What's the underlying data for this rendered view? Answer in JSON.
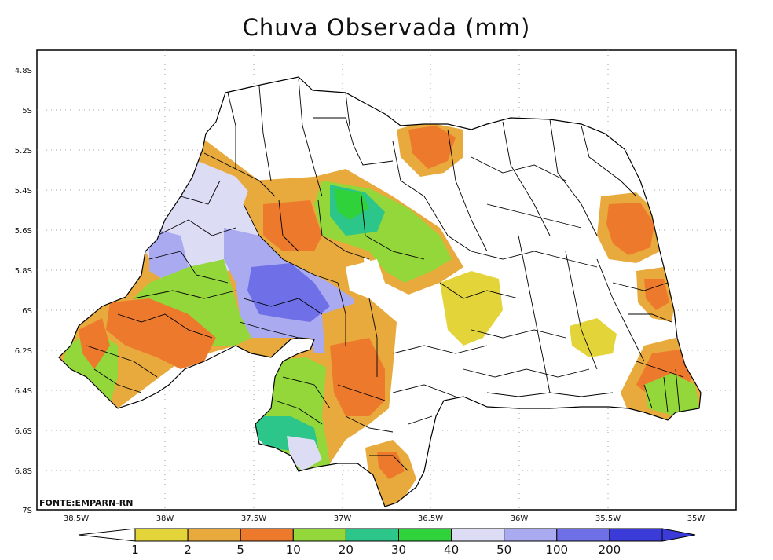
{
  "title": "Chuva Observada (mm)",
  "source": "FONTE:EMPARN-RN",
  "lat_labels": [
    "4.8S",
    "5S",
    "5.2S",
    "5.4S",
    "5.6S",
    "5.8S",
    "6S",
    "6.2S",
    "6.4S",
    "6.6S",
    "6.8S",
    "7S"
  ],
  "lon_labels": [
    "38.5W",
    "38W",
    "37.5W",
    "37W",
    "36.5W",
    "36W",
    "35.5W",
    "35W"
  ],
  "colorbar": {
    "labels": [
      "1",
      "2",
      "5",
      "10",
      "20",
      "30",
      "40",
      "50",
      "100",
      "200"
    ],
    "colors": [
      "#e3d43a",
      "#e8aa3c",
      "#ed7a2c",
      "#93d73a",
      "#2cc58a",
      "#2fd23a",
      "#dcdcf5",
      "#aaaaf0",
      "#6f6fe8",
      "#3b3bd9"
    ]
  }
}
